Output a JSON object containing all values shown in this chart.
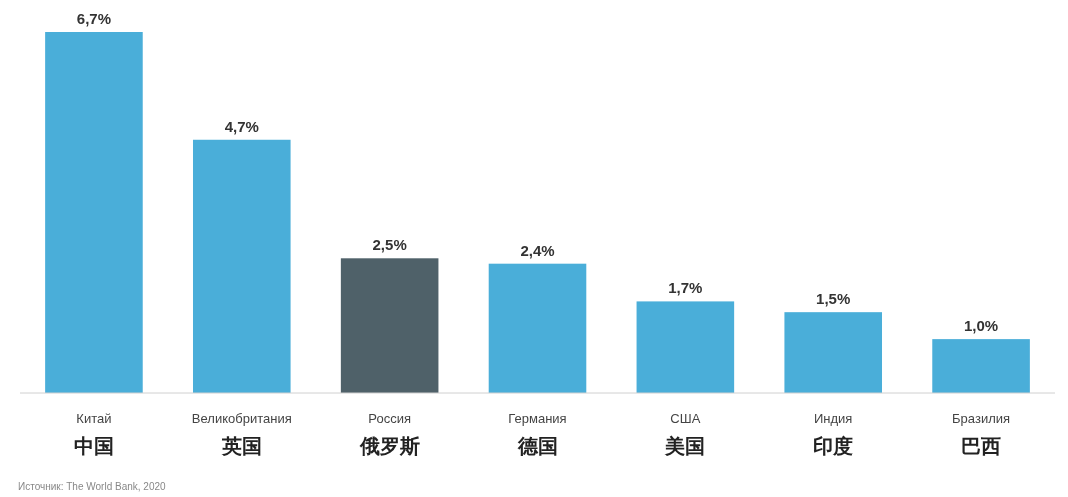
{
  "chart_data": {
    "type": "bar",
    "categories": [
      "Китай\n中国",
      "Великобритания\n英国",
      "Россия\n俄罗斯",
      "Германия\n德国",
      "США\n美国",
      "Индия\n印度",
      "Бразилия\n巴西"
    ],
    "values": [
      6.7,
      4.7,
      2.5,
      2.4,
      1.7,
      1.5,
      1.0
    ],
    "value_labels": [
      "6,7%",
      "4,7%",
      "2,5%",
      "2,4%",
      "1,7%",
      "1,5%",
      "1,0%"
    ],
    "colors": [
      "#4aaed9",
      "#4aaed9",
      "#4f6169",
      "#4aaed9",
      "#4aaed9",
      "#4aaed9",
      "#4aaed9"
    ],
    "annotations": [
      "Источник: The World Bank, 2020"
    ]
  }
}
